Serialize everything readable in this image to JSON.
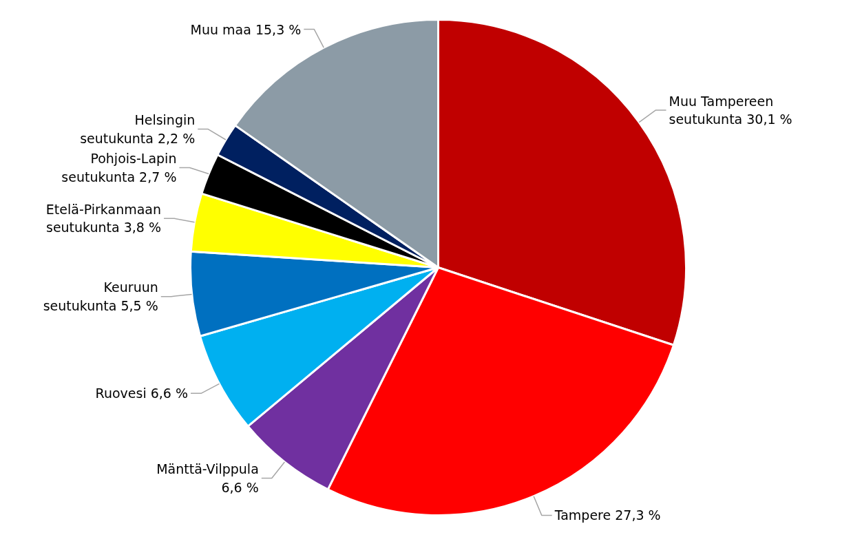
{
  "chart_data": {
    "type": "pie",
    "categories": [
      "Muu Tampereen seutukunta",
      "Tampere",
      "Mänttä-Vilppula",
      "Ruovesi",
      "Keuruun seutukunta",
      "Etelä-Pirkanmaan seutukunta",
      "Pohjois-Lapin seutukunta",
      "Helsingin seutukunta",
      "Muu maa"
    ],
    "values": [
      30.1,
      27.3,
      6.6,
      6.6,
      5.5,
      3.8,
      2.7,
      2.2,
      15.3
    ],
    "value_labels": [
      "30,1 %",
      "27,3 %",
      "6,6 %",
      "6,6 %",
      "5,5 %",
      "3,8 %",
      "2,7 %",
      "2,2 %",
      "15,3 %"
    ],
    "colors": [
      "#c00000",
      "#ff0000",
      "#7030a0",
      "#00b0f0",
      "#0070c0",
      "#ffff00",
      "#000000",
      "#002060",
      "#8c9ba6"
    ],
    "legend": false
  }
}
